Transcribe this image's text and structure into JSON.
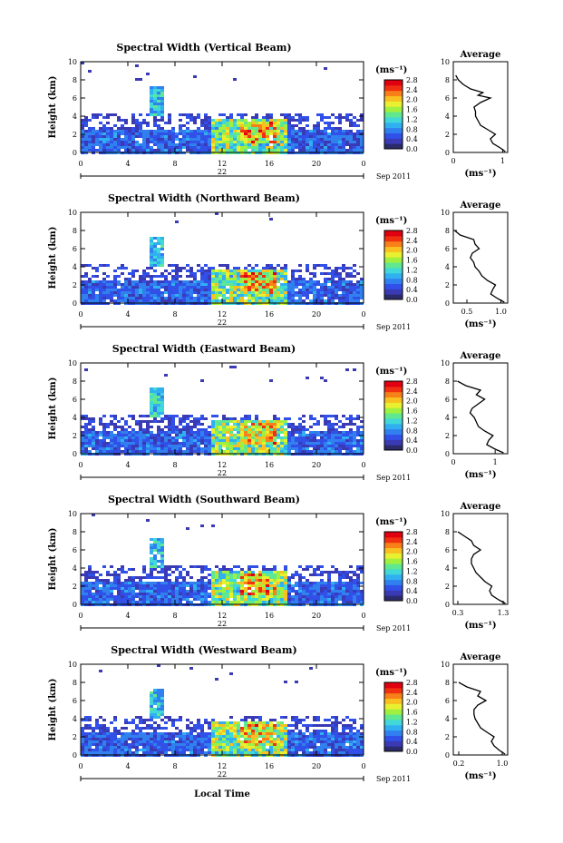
{
  "chart_data": [
    {
      "type": "heatmap",
      "title": "Spectral Width (Vertical Beam)",
      "ylabel": "Height (km)",
      "xlabel": "",
      "date_day": "22",
      "date_month": "Sep 2011",
      "colorbar_unit": "(ms⁻¹)",
      "x_ticks": [
        "0",
        "4",
        "8",
        "12",
        "16",
        "20",
        "0"
      ],
      "y_ticks": [
        "0",
        "2",
        "4",
        "6",
        "8",
        "10"
      ],
      "colorbar_ticks": [
        "0.0",
        "0.4",
        "0.8",
        "1.2",
        "1.6",
        "2.0",
        "2.4",
        "2.8"
      ],
      "profile": {
        "type": "line",
        "title": "Average",
        "xlabel": "(ms⁻¹)",
        "x_ticks": [
          "0",
          "1"
        ],
        "xlim": [
          0,
          1.1
        ],
        "y_ticks": [
          "0",
          "2",
          "4",
          "6",
          "8",
          "10"
        ],
        "ylim": [
          0,
          10
        ],
        "height_km": [
          0.1,
          0.5,
          1.0,
          1.5,
          2.0,
          2.5,
          3.0,
          3.5,
          4.0,
          4.5,
          5.0,
          5.5,
          6.0,
          6.3,
          6.6,
          7.0,
          7.5,
          8.0,
          8.5
        ],
        "width": [
          1.05,
          0.95,
          0.8,
          0.75,
          0.85,
          0.7,
          0.55,
          0.5,
          0.45,
          0.45,
          0.42,
          0.55,
          0.75,
          0.5,
          0.6,
          0.35,
          0.2,
          0.1,
          0.05
        ]
      }
    },
    {
      "type": "heatmap",
      "title": "Spectral Width (Northward Beam)",
      "ylabel": "Height (km)",
      "xlabel": "",
      "date_day": "22",
      "date_month": "Sep 2011",
      "colorbar_unit": "(ms⁻¹)",
      "x_ticks": [
        "0",
        "4",
        "8",
        "12",
        "16",
        "20",
        "0"
      ],
      "y_ticks": [
        "0",
        "2",
        "4",
        "6",
        "8",
        "10"
      ],
      "colorbar_ticks": [
        "0.0",
        "0.4",
        "0.8",
        "1.2",
        "1.6",
        "2.0",
        "2.4",
        "2.8"
      ],
      "profile": {
        "type": "line",
        "title": "Average",
        "xlabel": "(ms⁻¹)",
        "x_ticks": [
          "0.5",
          "1.0"
        ],
        "xlim": [
          0.3,
          1.1
        ],
        "y_ticks": [
          "0",
          "2",
          "4",
          "6",
          "8",
          "10"
        ],
        "ylim": [
          0,
          10
        ],
        "height_km": [
          0.1,
          0.5,
          1.0,
          1.5,
          2.0,
          2.5,
          3.0,
          3.5,
          4.0,
          4.5,
          5.0,
          5.5,
          6.0,
          6.5,
          7.0,
          7.5,
          8.0
        ],
        "width": [
          1.05,
          0.95,
          0.85,
          0.88,
          0.92,
          0.8,
          0.72,
          0.68,
          0.62,
          0.6,
          0.55,
          0.58,
          0.68,
          0.62,
          0.6,
          0.4,
          0.32
        ]
      }
    },
    {
      "type": "heatmap",
      "title": "Spectral Width (Eastward Beam)",
      "ylabel": "Height (km)",
      "xlabel": "",
      "date_day": "22",
      "date_month": "Sep 2011",
      "colorbar_unit": "(ms⁻¹)",
      "x_ticks": [
        "0",
        "4",
        "8",
        "12",
        "16",
        "20",
        "0"
      ],
      "y_ticks": [
        "0",
        "2",
        "4",
        "6",
        "8",
        "10"
      ],
      "colorbar_ticks": [
        "0.0",
        "0.4",
        "0.8",
        "1.2",
        "1.6",
        "2.0",
        "2.4",
        "2.8"
      ],
      "profile": {
        "type": "line",
        "title": "Average",
        "xlabel": "(ms⁻¹)",
        "x_ticks": [
          "0",
          "1"
        ],
        "xlim": [
          0,
          1.3
        ],
        "y_ticks": [
          "0",
          "2",
          "4",
          "6",
          "8",
          "10"
        ],
        "ylim": [
          0,
          10
        ],
        "height_km": [
          0.1,
          0.5,
          1.0,
          1.5,
          2.0,
          2.5,
          3.0,
          3.5,
          4.0,
          4.5,
          5.0,
          5.5,
          6.0,
          6.5,
          7.0,
          7.5,
          8.0
        ],
        "width": [
          1.2,
          1.0,
          0.8,
          0.85,
          0.95,
          0.75,
          0.6,
          0.55,
          0.5,
          0.4,
          0.45,
          0.6,
          0.75,
          0.55,
          0.65,
          0.3,
          0.1
        ]
      }
    },
    {
      "type": "heatmap",
      "title": "Spectral Width (Southward Beam)",
      "ylabel": "Height (km)",
      "xlabel": "",
      "date_day": "22",
      "date_month": "Sep 2011",
      "colorbar_unit": "(ms⁻¹)",
      "x_ticks": [
        "0",
        "4",
        "8",
        "12",
        "16",
        "20",
        "0"
      ],
      "y_ticks": [
        "0",
        "2",
        "4",
        "6",
        "8",
        "10"
      ],
      "colorbar_ticks": [
        "0.0",
        "0.4",
        "0.8",
        "1.2",
        "1.6",
        "2.0",
        "2.4",
        "2.8"
      ],
      "profile": {
        "type": "line",
        "title": "Average",
        "xlabel": "(ms⁻¹)",
        "x_ticks": [
          "0.3",
          "1.3"
        ],
        "xlim": [
          0.2,
          1.4
        ],
        "y_ticks": [
          "0",
          "2",
          "4",
          "6",
          "8",
          "10"
        ],
        "ylim": [
          0,
          10
        ],
        "height_km": [
          0.1,
          0.5,
          1.0,
          1.5,
          2.0,
          2.5,
          3.0,
          3.5,
          4.0,
          4.5,
          5.0,
          5.5,
          6.0,
          6.5,
          7.0,
          7.5,
          8.0
        ],
        "width": [
          1.35,
          1.2,
          1.05,
          1.0,
          1.05,
          0.9,
          0.8,
          0.7,
          0.65,
          0.6,
          0.6,
          0.65,
          0.8,
          0.65,
          0.6,
          0.45,
          0.3
        ]
      }
    },
    {
      "type": "heatmap",
      "title": "Spectral Width (Westward Beam)",
      "ylabel": "Height (km)",
      "xlabel": "Local Time",
      "date_day": "22",
      "date_month": "Sep 2011",
      "colorbar_unit": "(ms⁻¹)",
      "x_ticks": [
        "0",
        "4",
        "8",
        "12",
        "16",
        "20",
        "0"
      ],
      "y_ticks": [
        "0",
        "2",
        "4",
        "6",
        "8",
        "10"
      ],
      "colorbar_ticks": [
        "0.0",
        "0.4",
        "0.8",
        "1.2",
        "1.6",
        "2.0",
        "2.4",
        "2.8"
      ],
      "profile": {
        "type": "line",
        "title": "Average",
        "xlabel": "(ms⁻¹)",
        "x_ticks": [
          "0.2",
          "1.0"
        ],
        "xlim": [
          0.1,
          1.1
        ],
        "y_ticks": [
          "0",
          "2",
          "4",
          "6",
          "8",
          "10"
        ],
        "ylim": [
          0,
          10
        ],
        "height_km": [
          0.1,
          0.5,
          1.0,
          1.5,
          2.0,
          2.5,
          3.0,
          3.5,
          4.0,
          4.5,
          5.0,
          5.5,
          6.0,
          6.5,
          7.0,
          7.5,
          8.0
        ],
        "width": [
          1.05,
          0.95,
          0.85,
          0.8,
          0.85,
          0.72,
          0.6,
          0.55,
          0.5,
          0.48,
          0.48,
          0.55,
          0.7,
          0.55,
          0.6,
          0.35,
          0.2
        ]
      }
    }
  ],
  "palette": [
    "#2b2b6b",
    "#3a3ab5",
    "#3050e8",
    "#3080f0",
    "#30b0f0",
    "#40d8d8",
    "#60e890",
    "#a0f040",
    "#e8f030",
    "#f8c020",
    "#f88018",
    "#f03010",
    "#e00010"
  ]
}
